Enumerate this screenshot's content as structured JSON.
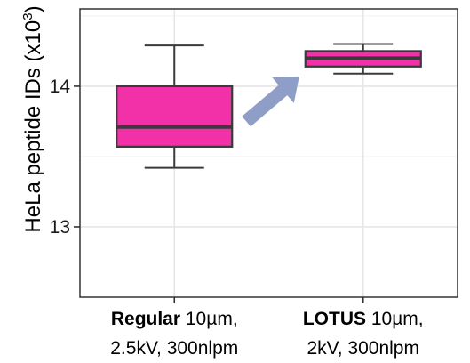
{
  "chart_data": {
    "type": "box",
    "ylabel_prefix": "HeLa peptide IDs (x10",
    "ylabel_exponent": "3",
    "ylabel_suffix": ")",
    "ylim": [
      12.5,
      14.55
    ],
    "yticks": [
      13,
      14
    ],
    "grid": true,
    "categories": [
      {
        "bold": "Regular",
        "rest": " 10µm,",
        "line2": "2.5kV, 300nlpm"
      },
      {
        "bold": "LOTUS",
        "rest": " 10µm,",
        "line2": "2kV, 300nlpm"
      }
    ],
    "boxes": [
      {
        "min": 13.42,
        "q1": 13.57,
        "median": 13.71,
        "q3": 14.0,
        "max": 14.29
      },
      {
        "min": 14.09,
        "q1": 14.14,
        "median": 14.2,
        "q3": 14.25,
        "max": 14.3
      }
    ],
    "annotation": "arrow from Regular to LOTUS",
    "colors": {
      "box_fill": "#f230a8",
      "box_stroke": "#3a3a3a",
      "arrow": "#8e9ec6",
      "grid": "#e6e6e6"
    }
  }
}
